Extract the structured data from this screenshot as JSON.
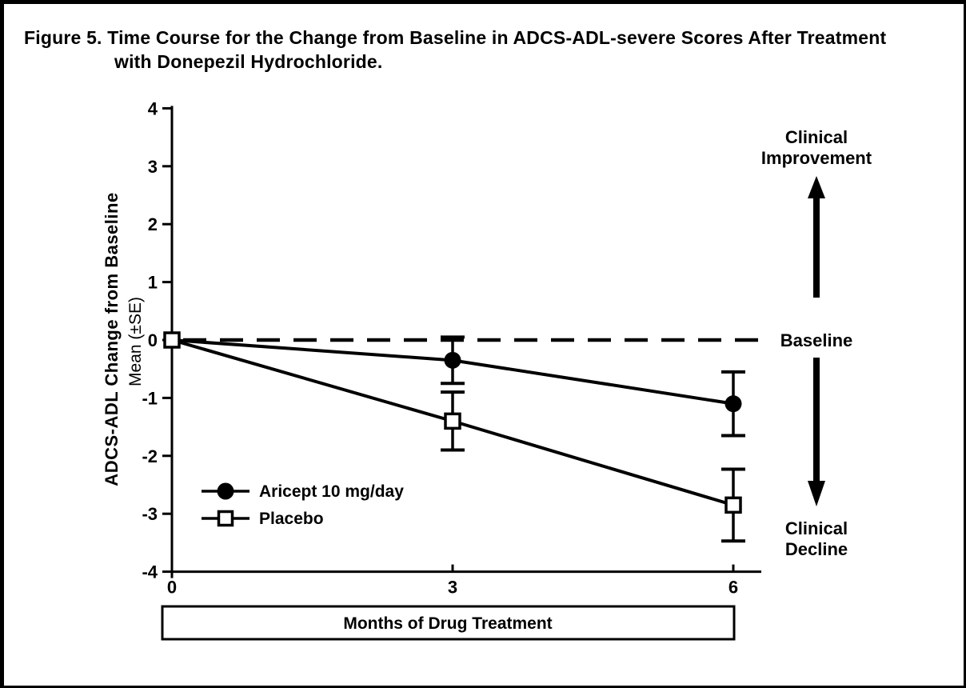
{
  "figure": {
    "title_line1": "Figure 5. Time Course for the Change from Baseline in ADCS-ADL-severe Scores After Treatment",
    "title_line2": "with Donepezil Hydrochloride."
  },
  "chart_data": {
    "type": "line",
    "title": "Figure 5. Time Course for the Change from Baseline in ADCS-ADL-severe Scores After Treatment with Donepezil Hydrochloride.",
    "x": [
      0,
      3,
      6
    ],
    "xticks": [
      0,
      3,
      6
    ],
    "yticks": [
      4,
      3,
      2,
      1,
      0,
      -1,
      -2,
      -3,
      -4
    ],
    "xlim": [
      0,
      6.3
    ],
    "ylim": [
      -4,
      4
    ],
    "grid": false,
    "xlabel": "Months of Drug Treatment",
    "ylabel": "ADCS-ADL Change from Baseline",
    "ylabel_sub": "Mean (±SE)",
    "legend_position": "lower-left-inside",
    "series": [
      {
        "name": "Aricept 10 mg/day",
        "marker": "filled-circle",
        "values": [
          0,
          -0.35,
          -1.1
        ],
        "se": [
          0,
          0.4,
          0.55
        ]
      },
      {
        "name": "Placebo",
        "marker": "open-square",
        "values": [
          0,
          -1.4,
          -2.85
        ],
        "se": [
          0,
          0.5,
          0.62
        ]
      }
    ],
    "baseline": {
      "y": 0,
      "style": "dashed",
      "label": "Baseline"
    },
    "annotations": [
      {
        "id": "improvement",
        "lines": [
          "Clinical",
          "Improvement"
        ],
        "arrow": "up"
      },
      {
        "id": "decline",
        "lines": [
          "Clinical",
          "Decline"
        ],
        "arrow": "down"
      }
    ],
    "colors": {
      "ink": "#000000",
      "background": "#ffffff"
    }
  }
}
